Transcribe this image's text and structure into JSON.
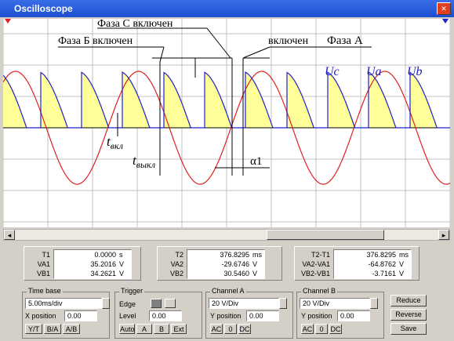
{
  "window": {
    "title": "Oscilloscope"
  },
  "annotations": {
    "phase_c": "Фаза С включен",
    "phase_b": "Фаза Б включен",
    "phase_a_on": "включен",
    "phase_a": "Фаза А",
    "uc": "Uc",
    "ua": "Ua",
    "ub": "Ub",
    "t_on": "t",
    "t_on_sub": "вкл",
    "t_off": "t",
    "t_off_sub": "выкл",
    "alpha": "α1"
  },
  "readouts": [
    {
      "rows": [
        [
          "T1",
          "0.0000",
          "s"
        ],
        [
          "VA1",
          "35.2016",
          "V"
        ],
        [
          "VB1",
          "34.2621",
          "V"
        ]
      ]
    },
    {
      "rows": [
        [
          "T2",
          "376.8295",
          "ms"
        ],
        [
          "VA2",
          "-29.6746",
          "V"
        ],
        [
          "VB2",
          "30.5460",
          "V"
        ]
      ]
    },
    {
      "rows": [
        [
          "T2-T1",
          "376.8295",
          "ms"
        ],
        [
          "VA2-VA1",
          "-64.8762",
          "V"
        ],
        [
          "VB2-VB1",
          "-3.7161",
          "V"
        ]
      ]
    }
  ],
  "time_base": {
    "title": "Time base",
    "scale": "5.00ms/div",
    "position_label": "X position",
    "position": "0.00",
    "modes": [
      "Y/T",
      "B/A",
      "A/B"
    ]
  },
  "trigger": {
    "title": "Trigger",
    "edge": "Edge",
    "level_label": "Level",
    "level": "0.00",
    "sources": [
      "Auto",
      "A",
      "B",
      "Ext"
    ]
  },
  "channel_a": {
    "title": "Channel A",
    "scale": "20 V/Div",
    "position_label": "Y position",
    "position": "0.00",
    "coupling": [
      "AC",
      "0",
      "DC"
    ]
  },
  "channel_b": {
    "title": "Channel B",
    "scale": "20 V/Div",
    "position_label": "Y position",
    "position": "0.00",
    "coupling": [
      "AC",
      "0",
      "DC"
    ]
  },
  "buttons": [
    "Reduce",
    "Reverse",
    "Save"
  ]
}
